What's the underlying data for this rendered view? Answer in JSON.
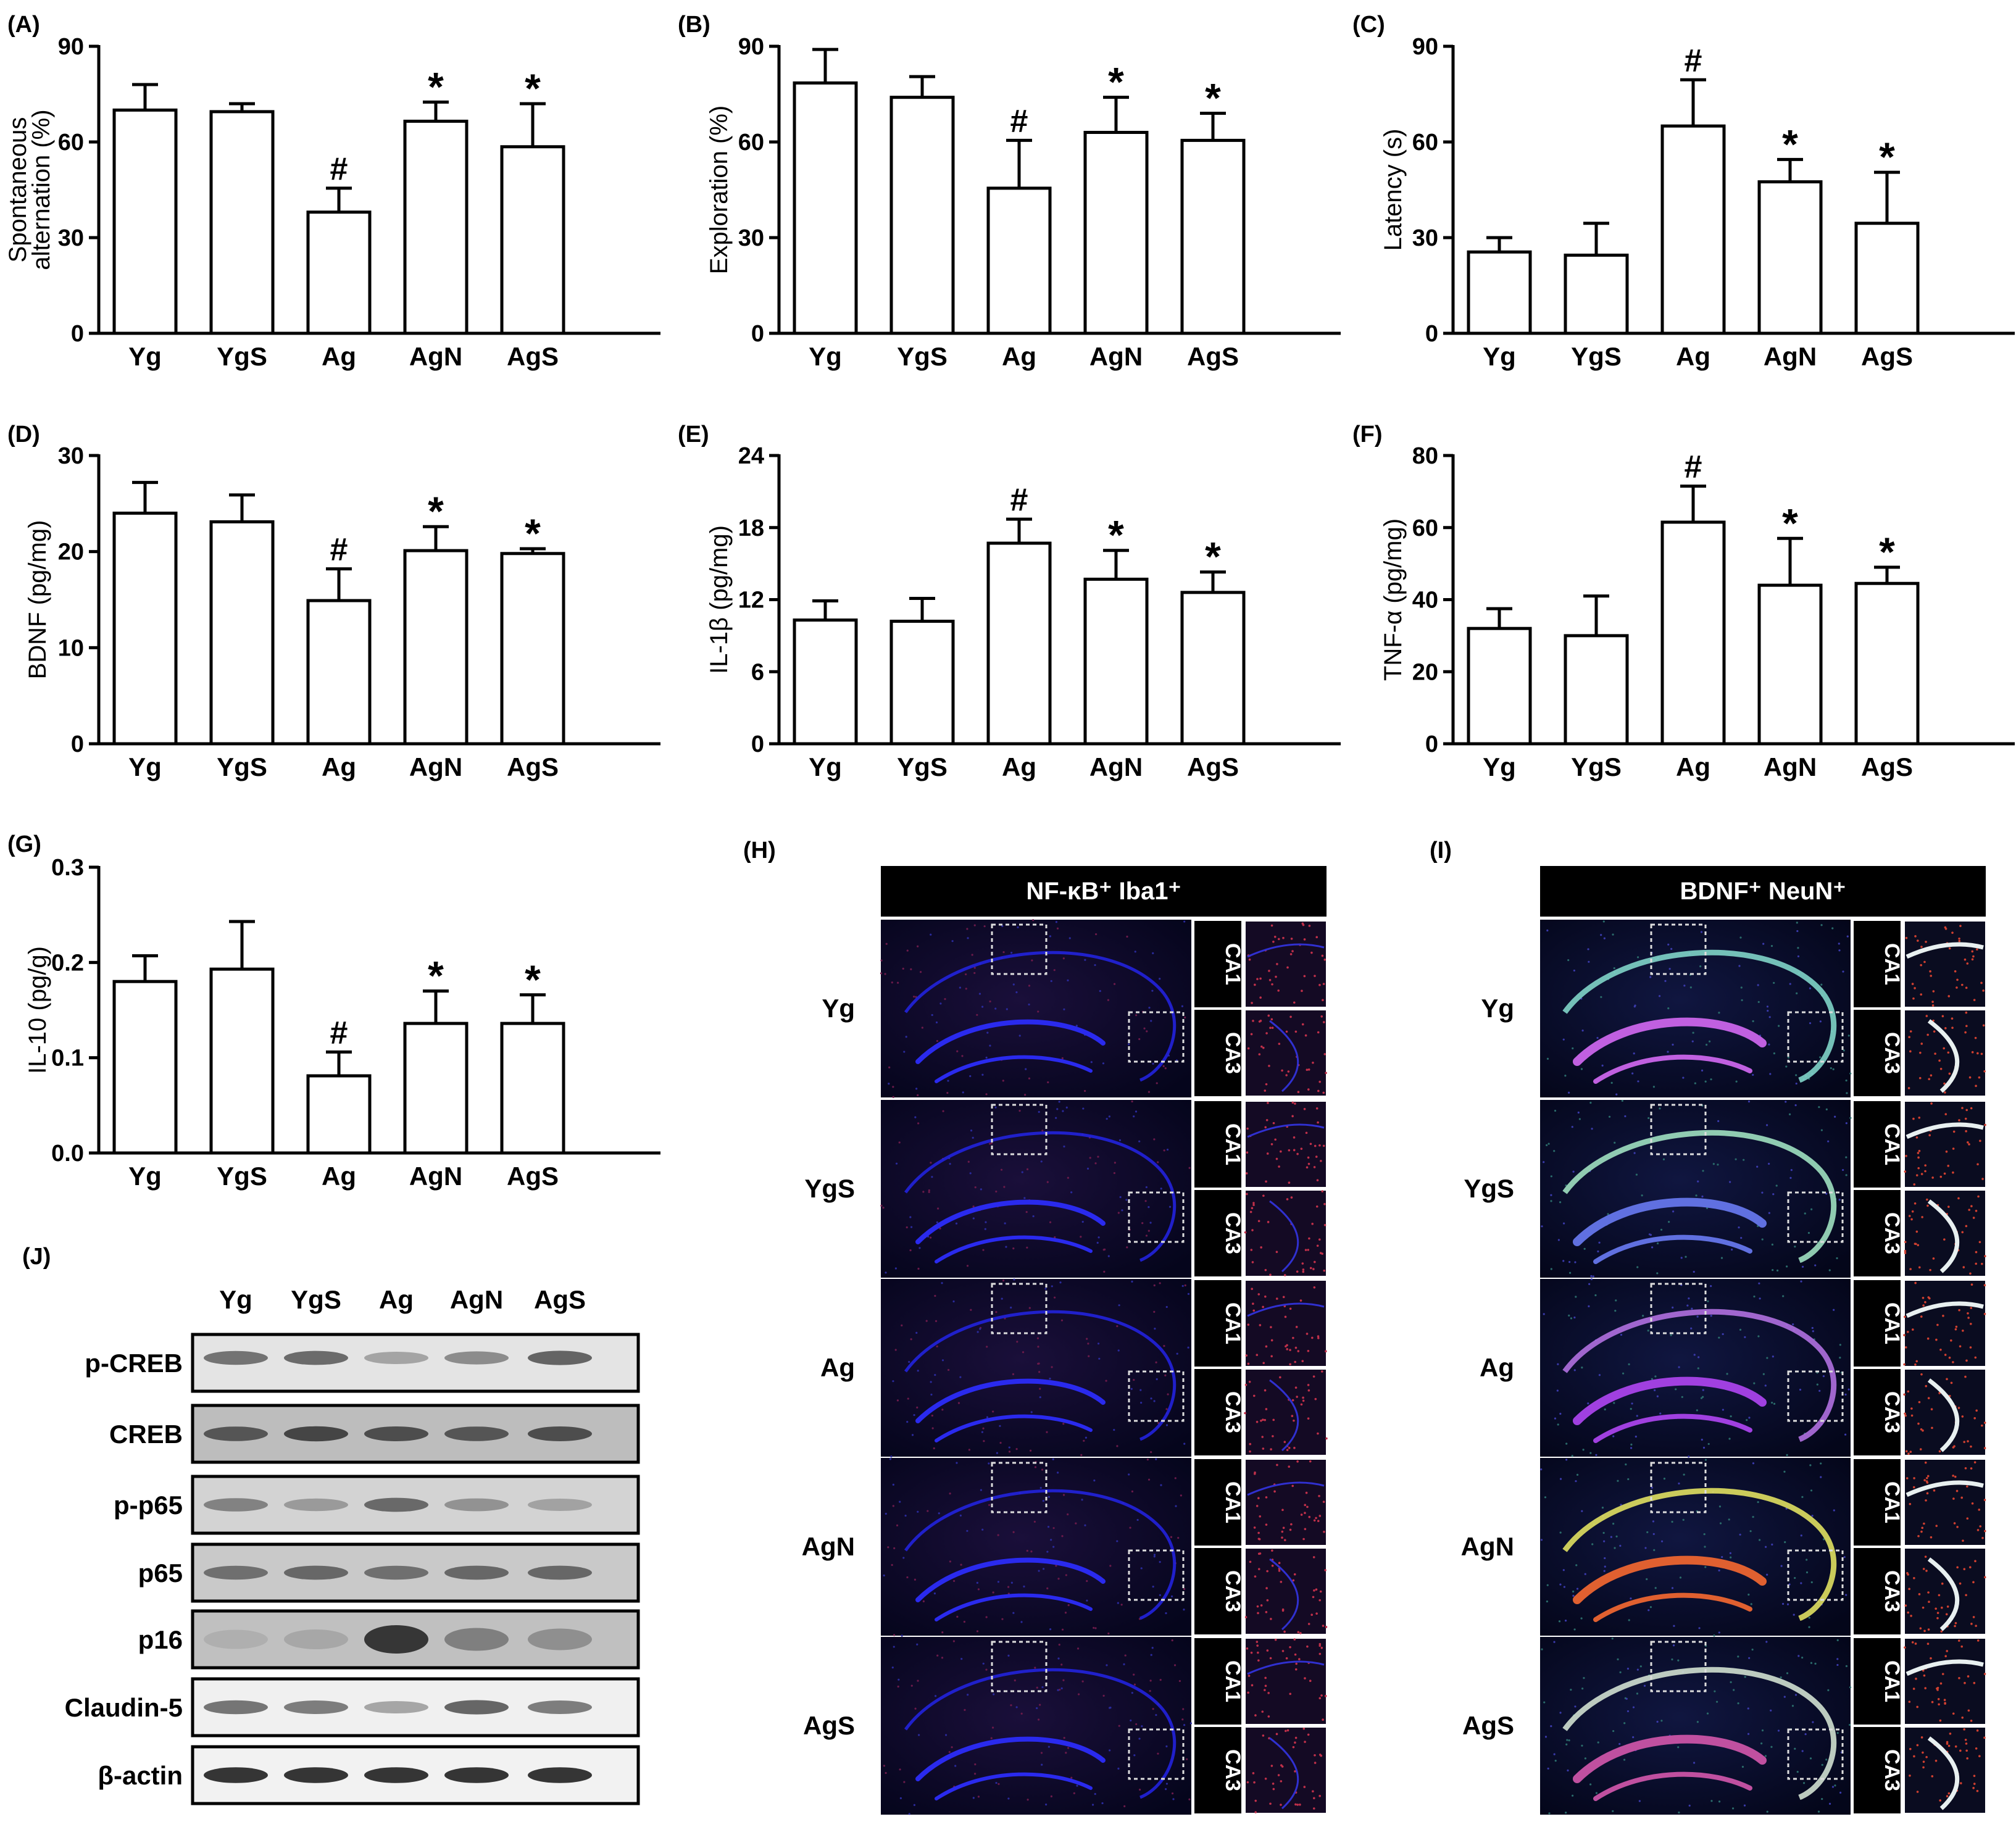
{
  "panels": {
    "A": {
      "label": "(A)"
    },
    "B": {
      "label": "(B)"
    },
    "C": {
      "label": "(C)"
    },
    "D": {
      "label": "(D)"
    },
    "E": {
      "label": "(E)"
    },
    "F": {
      "label": "(F)"
    },
    "G": {
      "label": "(G)"
    },
    "H": {
      "label": "(H)",
      "header": "NF-κB⁺ Iba1⁺"
    },
    "I": {
      "label": "(I)",
      "header": "BDNF⁺ NeuN⁺"
    },
    "J": {
      "label": "(J)"
    }
  },
  "groups": [
    "Yg",
    "YgS",
    "Ag",
    "AgN",
    "AgS"
  ],
  "regions": [
    "CA1",
    "CA3"
  ],
  "western_blot": {
    "lanes": [
      "Yg",
      "YgS",
      "Ag",
      "AgN",
      "AgS"
    ],
    "bands": [
      {
        "name": "p-CREB",
        "intensity": [
          0.55,
          0.6,
          0.25,
          0.4,
          0.65
        ],
        "bg": "#e4e4e4"
      },
      {
        "name": "CREB",
        "intensity": [
          0.7,
          0.8,
          0.75,
          0.7,
          0.75
        ],
        "bg": "#bdbdbd"
      },
      {
        "name": "p-p65",
        "intensity": [
          0.45,
          0.3,
          0.6,
          0.35,
          0.25
        ],
        "bg": "#d3d3d3"
      },
      {
        "name": "p65",
        "intensity": [
          0.55,
          0.6,
          0.55,
          0.6,
          0.6
        ],
        "bg": "#c9c9c9"
      },
      {
        "name": "p16",
        "intensity": [
          0.15,
          0.2,
          0.9,
          0.45,
          0.35
        ],
        "bg": "#c0c0c0"
      },
      {
        "name": "Claudin-5",
        "intensity": [
          0.55,
          0.5,
          0.25,
          0.65,
          0.5
        ],
        "bg": "#f0f0f0"
      },
      {
        "name": "β-actin",
        "intensity": [
          0.95,
          0.95,
          0.95,
          0.95,
          0.95
        ],
        "bg": "#f2f2f2"
      }
    ]
  },
  "colors": {
    "ink": "#000000",
    "blue_stain": "#1a1acf",
    "nfkb_red": "#b8203a",
    "bdnf_red": "#d63020",
    "neun_green": "#22c060"
  },
  "chart_data": [
    {
      "id": "A",
      "type": "bar",
      "categories": [
        "Yg",
        "YgS",
        "Ag",
        "AgN",
        "AgS"
      ],
      "values": [
        70,
        69.5,
        38,
        66.5,
        58.5
      ],
      "errors": [
        8,
        2.5,
        7.5,
        6,
        13.5
      ],
      "marks": [
        "",
        "",
        "#",
        "*",
        "*"
      ],
      "ylabel": [
        "Spontaneous",
        "alternation (%)"
      ],
      "ylim": [
        0,
        90
      ],
      "yticks": [
        "0",
        "30",
        "60",
        "90"
      ]
    },
    {
      "id": "B",
      "type": "bar",
      "categories": [
        "Yg",
        "YgS",
        "Ag",
        "AgN",
        "AgS"
      ],
      "values": [
        78.5,
        74,
        45.5,
        63,
        60.5
      ],
      "errors": [
        10.5,
        6.5,
        15,
        11,
        8.5
      ],
      "marks": [
        "",
        "",
        "#",
        "*",
        "*"
      ],
      "ylabel": [
        "Exploration (%)"
      ],
      "ylim": [
        0,
        90
      ],
      "yticks": [
        "0",
        "30",
        "60",
        "90"
      ]
    },
    {
      "id": "C",
      "type": "bar",
      "categories": [
        "Yg",
        "YgS",
        "Ag",
        "AgN",
        "AgS"
      ],
      "values": [
        25.5,
        24.5,
        65,
        47.5,
        34.5
      ],
      "errors": [
        4.5,
        10,
        14.5,
        7,
        16
      ],
      "marks": [
        "",
        "",
        "#",
        "*",
        "*"
      ],
      "ylabel": [
        "Latency (s)"
      ],
      "ylim": [
        0,
        90
      ],
      "yticks": [
        "0",
        "30",
        "60",
        "90"
      ]
    },
    {
      "id": "D",
      "type": "bar",
      "categories": [
        "Yg",
        "YgS",
        "Ag",
        "AgN",
        "AgS"
      ],
      "values": [
        24,
        23.1,
        14.9,
        20.1,
        19.8
      ],
      "errors": [
        3.2,
        2.8,
        3.3,
        2.5,
        0.5
      ],
      "marks": [
        "",
        "",
        "#",
        "*",
        "*"
      ],
      "ylabel": [
        "BDNF (pg/mg)"
      ],
      "ylim": [
        0,
        30
      ],
      "yticks": [
        "0",
        "10",
        "20",
        "30"
      ]
    },
    {
      "id": "E",
      "type": "bar",
      "categories": [
        "Yg",
        "YgS",
        "Ag",
        "AgN",
        "AgS"
      ],
      "values": [
        10.3,
        10.2,
        16.7,
        13.7,
        12.6
      ],
      "errors": [
        1.6,
        1.9,
        2.0,
        2.4,
        1.7
      ],
      "marks": [
        "",
        "",
        "#",
        "*",
        "*"
      ],
      "ylabel": [
        "IL-1β (pg/mg)"
      ],
      "ylim": [
        0,
        24
      ],
      "yticks": [
        "0",
        "6",
        "12",
        "18",
        "24"
      ]
    },
    {
      "id": "F",
      "type": "bar",
      "categories": [
        "Yg",
        "YgS",
        "Ag",
        "AgN",
        "AgS"
      ],
      "values": [
        32,
        30,
        61.5,
        44,
        44.5
      ],
      "errors": [
        5.5,
        11,
        10,
        13,
        4.5
      ],
      "marks": [
        "",
        "",
        "#",
        "*",
        "*"
      ],
      "ylabel": [
        "TNF-α (pg/mg)"
      ],
      "ylim": [
        0,
        80
      ],
      "yticks": [
        "0",
        "20",
        "40",
        "60",
        "80"
      ]
    },
    {
      "id": "G",
      "type": "bar",
      "categories": [
        "Yg",
        "YgS",
        "Ag",
        "AgN",
        "AgS"
      ],
      "values": [
        0.18,
        0.193,
        0.081,
        0.136,
        0.136
      ],
      "errors": [
        0.027,
        0.05,
        0.025,
        0.034,
        0.03
      ],
      "marks": [
        "",
        "",
        "#",
        "*",
        "*"
      ],
      "ylabel": [
        "IL-10 (pg/g)"
      ],
      "ylim": [
        0,
        0.3
      ],
      "yticks": [
        "0.0",
        "0.1",
        "0.2",
        "0.3"
      ]
    }
  ]
}
